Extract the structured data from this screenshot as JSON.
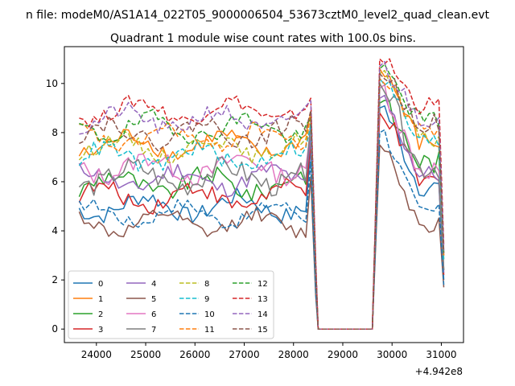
{
  "chart_data": {
    "type": "line",
    "suptitle": "n file: modeM0/AS1A14_022T05_9000006504_53673cztM0_level2_quad_clean.evt",
    "title": "Quadrant 1 module wise count rates with 100.0s bins.",
    "xlabel": "",
    "ylabel": "",
    "x_offset_label": "+4.942e8",
    "xlim": [
      23350,
      31450
    ],
    "ylim": [
      -0.55,
      11.5
    ],
    "x_ticks": [
      24000,
      25000,
      26000,
      27000,
      28000,
      29000,
      30000,
      31000
    ],
    "y_ticks": [
      0,
      2,
      4,
      6,
      8,
      10
    ],
    "legend": {
      "placement": "lower-left",
      "columns": 4
    },
    "gap": [
      28500,
      29600
    ],
    "series": [
      {
        "name": "0",
        "color": "#1f77b4",
        "dash": "solid",
        "base": 5.0,
        "amp": 0.35,
        "x1": 28350,
        "y1": 7.4,
        "peak": 9.0,
        "tail": 5.8,
        "end": 2.0
      },
      {
        "name": "1",
        "color": "#ff7f0e",
        "dash": "solid",
        "base": 7.5,
        "amp": 0.35,
        "x1": 28350,
        "y1": 8.8,
        "peak": 10.6,
        "tail": 7.6,
        "end": 3.0
      },
      {
        "name": "2",
        "color": "#2ca02c",
        "dash": "solid",
        "base": 5.9,
        "amp": 0.4,
        "x1": 28350,
        "y1": 7.9,
        "peak": 9.2,
        "tail": 6.8,
        "end": 2.4
      },
      {
        "name": "3",
        "color": "#d62728",
        "dash": "solid",
        "base": 5.4,
        "amp": 0.35,
        "x1": 28350,
        "y1": 7.6,
        "peak": 8.8,
        "tail": 6.0,
        "end": 2.2
      },
      {
        "name": "4",
        "color": "#9467bd",
        "dash": "solid",
        "base": 6.1,
        "amp": 0.35,
        "x1": 28350,
        "y1": 7.8,
        "peak": 9.4,
        "tail": 6.3,
        "end": 2.3
      },
      {
        "name": "5",
        "color": "#8c564b",
        "dash": "solid",
        "base": 4.3,
        "amp": 0.3,
        "x1": 28350,
        "y1": 6.2,
        "peak": 7.5,
        "tail": 4.3,
        "end": 1.7
      },
      {
        "name": "6",
        "color": "#e377c2",
        "dash": "solid",
        "base": 6.6,
        "amp": 0.4,
        "x1": 28350,
        "y1": 8.2,
        "peak": 9.8,
        "tail": 6.5,
        "end": 2.4
      },
      {
        "name": "7",
        "color": "#7f7f7f",
        "dash": "solid",
        "base": 6.2,
        "amp": 0.45,
        "x1": 28350,
        "y1": 8.5,
        "peak": 10.0,
        "tail": 6.6,
        "end": 2.4
      },
      {
        "name": "8",
        "color": "#bcbd22",
        "dash": "dashed",
        "base": 7.4,
        "amp": 0.3,
        "x1": 28350,
        "y1": 8.7,
        "peak": 10.4,
        "tail": 7.7,
        "end": 2.8
      },
      {
        "name": "9",
        "color": "#17becf",
        "dash": "dashed",
        "base": 7.0,
        "amp": 0.35,
        "x1": 28350,
        "y1": 8.3,
        "peak": 10.2,
        "tail": 7.6,
        "end": 2.8
      },
      {
        "name": "10",
        "color": "#1f77b4",
        "dash": "dashed",
        "base": 4.7,
        "amp": 0.25,
        "x1": 28350,
        "y1": 6.8,
        "peak": 8.0,
        "tail": 4.8,
        "end": 1.8
      },
      {
        "name": "11",
        "color": "#ff7f0e",
        "dash": "dashed",
        "base": 7.8,
        "amp": 0.3,
        "x1": 28350,
        "y1": 8.8,
        "peak": 10.2,
        "tail": 8.1,
        "end": 3.0
      },
      {
        "name": "12",
        "color": "#2ca02c",
        "dash": "dashed",
        "base": 8.2,
        "amp": 0.35,
        "x1": 28350,
        "y1": 8.6,
        "peak": 10.6,
        "tail": 8.5,
        "end": 3.1
      },
      {
        "name": "13",
        "color": "#d62728",
        "dash": "dashed",
        "base": 8.9,
        "amp": 0.3,
        "x1": 28350,
        "y1": 9.4,
        "peak": 11.0,
        "tail": 9.1,
        "end": 3.4
      },
      {
        "name": "14",
        "color": "#9467bd",
        "dash": "dashed",
        "base": 8.5,
        "amp": 0.35,
        "x1": 28350,
        "y1": 9.3,
        "peak": 10.7,
        "tail": 8.6,
        "end": 3.2
      },
      {
        "name": "15",
        "color": "#8c564b",
        "dash": "dashed",
        "base": 8.0,
        "amp": 0.35,
        "x1": 28350,
        "y1": 8.9,
        "peak": 10.4,
        "tail": 8.4,
        "end": 3.1
      }
    ]
  }
}
